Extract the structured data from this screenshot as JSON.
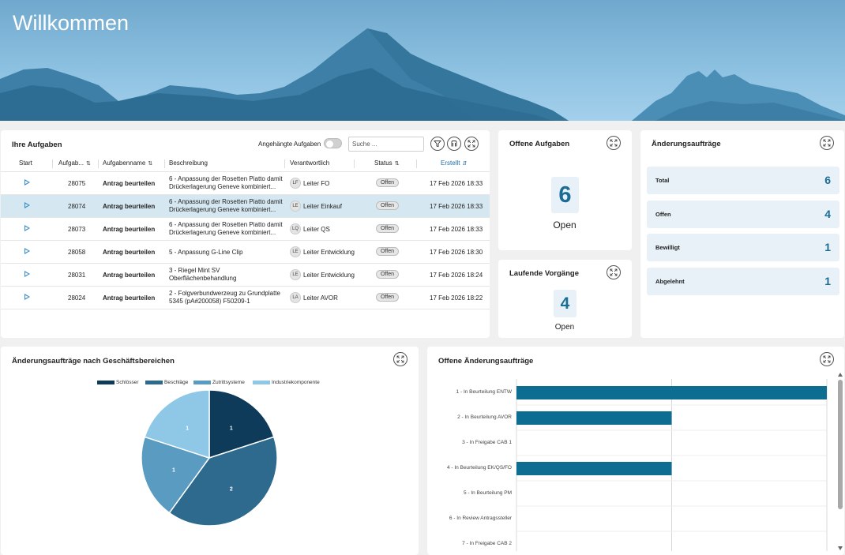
{
  "hero": {
    "title": "Willkommen"
  },
  "tasks": {
    "title": "Ihre Aufgaben",
    "toggle_label": "Angehängte Aufgaben",
    "search_placeholder": "Suche ...",
    "columns": {
      "start": "Start",
      "id": "Aufgab...",
      "name": "Aufgabenname",
      "desc": "Beschreibung",
      "owner": "Verantwortlich",
      "status": "Status",
      "created": "Erstellt"
    },
    "rows": [
      {
        "id": "28075",
        "name": "Antrag beurteilen",
        "desc": "6 - Anpassung der Rosetten Piatto damit Drückerlagerung Geneve kombiniert...",
        "initials": "LF",
        "owner": "Leiter FO",
        "status": "Offen",
        "created": "17 Feb 2026 18:33",
        "selected": false
      },
      {
        "id": "28074",
        "name": "Antrag beurteilen",
        "desc": "6 - Anpassung der Rosetten Piatto damit Drückerlagerung Geneve kombiniert...",
        "initials": "LE",
        "owner": "Leiter Einkauf",
        "status": "Offen",
        "created": "17 Feb 2026 18:33",
        "selected": true
      },
      {
        "id": "28073",
        "name": "Antrag beurteilen",
        "desc": "6 - Anpassung der Rosetten Piatto damit Drückerlagerung Geneve kombiniert...",
        "initials": "LQ",
        "owner": "Leiter QS",
        "status": "Offen",
        "created": "17 Feb 2026 18:33",
        "selected": false
      },
      {
        "id": "28058",
        "name": "Antrag beurteilen",
        "desc": "5 - Anpassung G-Line Clip",
        "initials": "LE",
        "owner": "Leiter Entwicklung",
        "status": "Offen",
        "created": "17 Feb 2026 18:30",
        "selected": false
      },
      {
        "id": "28031",
        "name": "Antrag beurteilen",
        "desc": "3 - Riegel Mint SV Oberflächenbehandlung",
        "initials": "LE",
        "owner": "Leiter Entwicklung",
        "status": "Offen",
        "created": "17 Feb 2026 18:24",
        "selected": false
      },
      {
        "id": "28024",
        "name": "Antrag beurteilen",
        "desc": "2 - Folgverbundwerzeug zu Grundplatte 5345 (pA#200058) F50209-1",
        "initials": "LA",
        "owner": "Leiter AVOR",
        "status": "Offen",
        "created": "17 Feb 2026 18:22",
        "selected": false
      }
    ]
  },
  "open_tasks": {
    "title": "Offene Aufgaben",
    "value": "6",
    "label": "Open"
  },
  "running": {
    "title": "Laufende Vorgänge",
    "value": "4",
    "label": "Open"
  },
  "change_orders": {
    "title": "Änderungsaufträge",
    "stats": [
      {
        "label": "Total",
        "value": "6"
      },
      {
        "label": "Offen",
        "value": "4"
      },
      {
        "label": "Bewilligt",
        "value": "1"
      },
      {
        "label": "Abgelehnt",
        "value": "1"
      }
    ]
  },
  "pie_card": {
    "title": "Änderungsaufträge nach Geschäftsbereichen",
    "chart_data": {
      "type": "pie",
      "categories": [
        "Schlösser",
        "Beschläge",
        "Zutrittsysteme",
        "Industriekomponente"
      ],
      "values": [
        1,
        2,
        1,
        1
      ],
      "colors": [
        "#0f3b5a",
        "#2e6a8e",
        "#5a9bc2",
        "#8ec8e6"
      ],
      "legend": "top"
    }
  },
  "bar_card": {
    "title": "Offene Änderungsaufträge",
    "chart_data": {
      "type": "bar",
      "orientation": "horizontal",
      "categories": [
        "1 - In Beurteilung ENTW",
        "2 - In Beurteilung AVOR",
        "3 - In Freigabe CAB 1",
        "4 - In Beurteilung EK/QS/FO",
        "5 - In Beurteilung PM",
        "6 - In Review Antragssteller",
        "7 - In Freigabe CAB 2"
      ],
      "values": [
        2,
        1,
        0,
        1,
        0,
        0,
        0
      ],
      "xlim": [
        0,
        2
      ],
      "color": "#0e6e91",
      "grid": true
    }
  }
}
